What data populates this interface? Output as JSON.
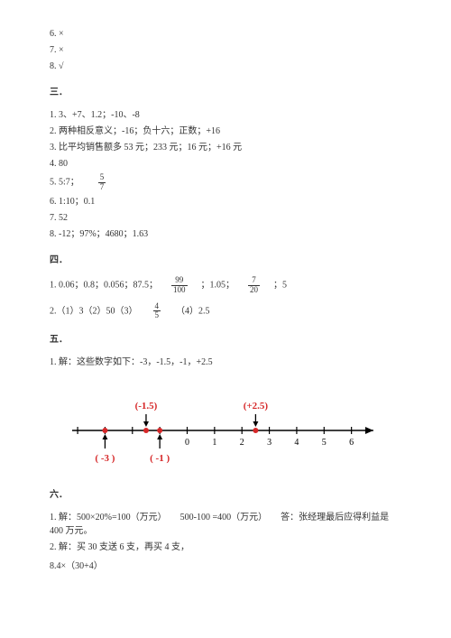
{
  "top": {
    "l6": "6. ×",
    "l7": "7. ×",
    "l8": "8. √"
  },
  "s3": {
    "head": "三．",
    "l1": "1. 3、+7、1.2；-10、-8",
    "l2": "2. 两种相反意义；-16；负十六；正数；+16",
    "l3": "3. 比平均销售额多 53 元；233 元；16 元；+16 元",
    "l4": "4. 80",
    "l5a": "5. 5:7；",
    "l5fn": "5",
    "l5fd": "7",
    "l6": "6. 1:10；0.1",
    "l7": "7. 52",
    "l8": "8. -12；97%；4680；1.63"
  },
  "s4": {
    "head": "四．",
    "l1a": "1. 0.06；0.8；0.056；87.5；",
    "f1n": "99",
    "f1d": "100",
    "l1b": "；1.05；",
    "f2n": "7",
    "f2d": "20",
    "l1c": "；5",
    "l2a": "2.（1）3（2）50（3）",
    "f3n": "4",
    "f3d": "5",
    "l2b": "（4）2.5"
  },
  "s5": {
    "head": "五．",
    "l1": "1. 解：这些数字如下：-3，-1.5，-1，+2.5"
  },
  "nl": {
    "ticks": [
      -4,
      -3,
      -2,
      -1,
      0,
      1,
      2,
      3,
      4,
      5,
      6
    ],
    "labels": [
      {
        "v": 0,
        "t": "0"
      },
      {
        "v": 1,
        "t": "1"
      },
      {
        "v": 2,
        "t": "2"
      },
      {
        "v": 3,
        "t": "3"
      },
      {
        "v": 4,
        "t": "4"
      },
      {
        "v": 5,
        "t": "5"
      },
      {
        "v": 6,
        "t": "6"
      }
    ],
    "topMarks": [
      {
        "v": -1.5,
        "t": "(-1.5)",
        "color": "#d62728"
      },
      {
        "v": 2.5,
        "t": "(+2.5)",
        "color": "#d62728"
      }
    ],
    "botMarks": [
      {
        "v": -3,
        "t": "( -3 )",
        "color": "#d62728"
      },
      {
        "v": -1,
        "t": "( -1 )",
        "color": "#d62728"
      }
    ],
    "axisColor": "#000000",
    "dotColor": "#d62728",
    "arrowColor": "#000000"
  },
  "s6": {
    "head": "六．",
    "l1": "1. 解：500×20%=100（万元）　　500-100 =400（万元）　　答：张经理最后应得利益是 400 万元。",
    "l2": "2. 解：买 30 支送 6 支，再买 4 支，",
    "l3": "8.4×（30+4）"
  }
}
